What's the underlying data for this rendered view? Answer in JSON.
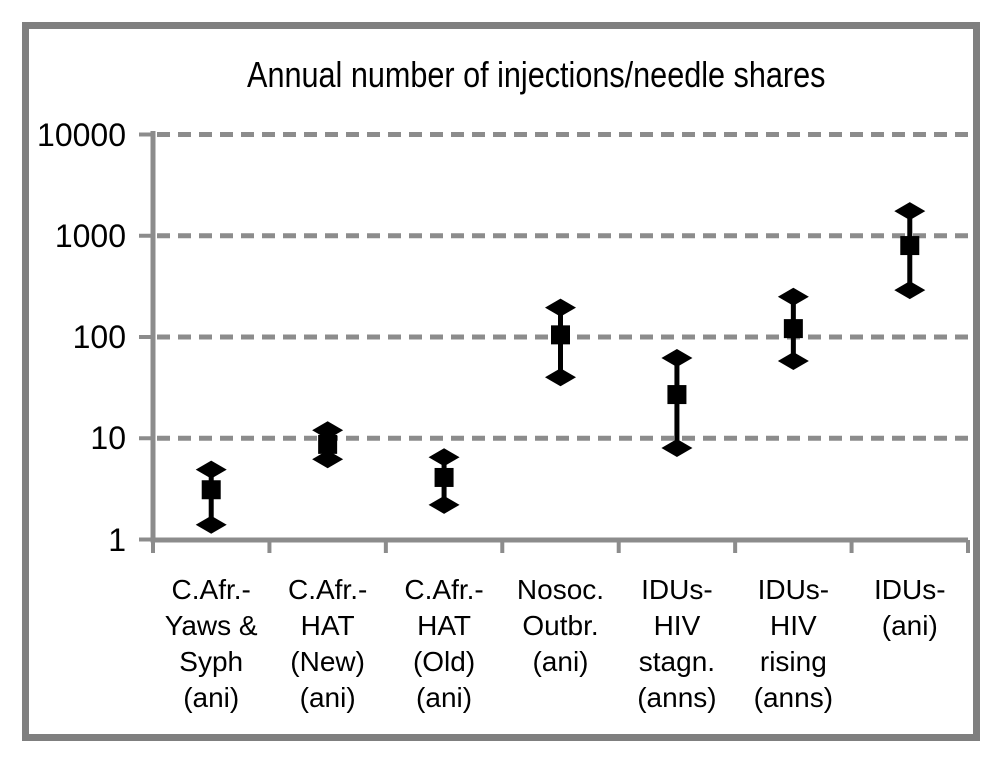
{
  "chart_data": {
    "type": "scatter",
    "subtype": "point-estimates-with-error-bars",
    "title": "Annual number of injections/needle shares",
    "y_axis": {
      "scale": "log",
      "range": [
        1,
        10000
      ],
      "ticks": [
        10000,
        1000,
        100,
        10,
        1
      ],
      "tick_labels": [
        "10000",
        "1000",
        "100",
        "10",
        "1"
      ]
    },
    "grid": "horizontal-dashed",
    "legend": "none",
    "categories": [
      "C.Afr.- Yaws & Syph (ani)",
      "C.Afr.- HAT (New) (ani)",
      "C.Afr.- HAT (Old) (ani)",
      "Nosoc. Outbr. (ani)",
      "IDUs- HIV stagn. (anns)",
      "IDUs- HIV rising (anns)",
      "IDUs- (ani)"
    ],
    "points": [
      {
        "label_lines": [
          "C.Afr.-",
          "Yaws &",
          "Syph",
          "(ani)"
        ],
        "value": 3.1,
        "low": 1.4,
        "high": 4.9
      },
      {
        "label_lines": [
          "C.Afr.-",
          "HAT",
          "(New)",
          "(ani)"
        ],
        "value": 8.7,
        "low": 6.2,
        "high": 12
      },
      {
        "label_lines": [
          "C.Afr.-",
          "HAT",
          "(Old)",
          "(ani)"
        ],
        "value": 4.1,
        "low": 2.2,
        "high": 6.5
      },
      {
        "label_lines": [
          "Nosoc.",
          "Outbr.",
          "(ani)"
        ],
        "value": 105,
        "low": 40,
        "high": 195
      },
      {
        "label_lines": [
          "IDUs-",
          "HIV",
          "stagn.",
          "(anns)"
        ],
        "value": 27,
        "low": 8,
        "high": 62
      },
      {
        "label_lines": [
          "IDUs-",
          "HIV",
          "rising",
          "(anns)"
        ],
        "value": 121,
        "low": 58,
        "high": 250
      },
      {
        "label_lines": [
          "IDUs-",
          "(ani)"
        ],
        "value": 800,
        "low": 290,
        "high": 1750
      }
    ],
    "colors": {
      "frame": "#7f7f7f",
      "axis": "#8c8c8c",
      "gridline": "#8c8c8c",
      "marker": "#000000",
      "text": "#000000",
      "background": "#ffffff"
    }
  }
}
